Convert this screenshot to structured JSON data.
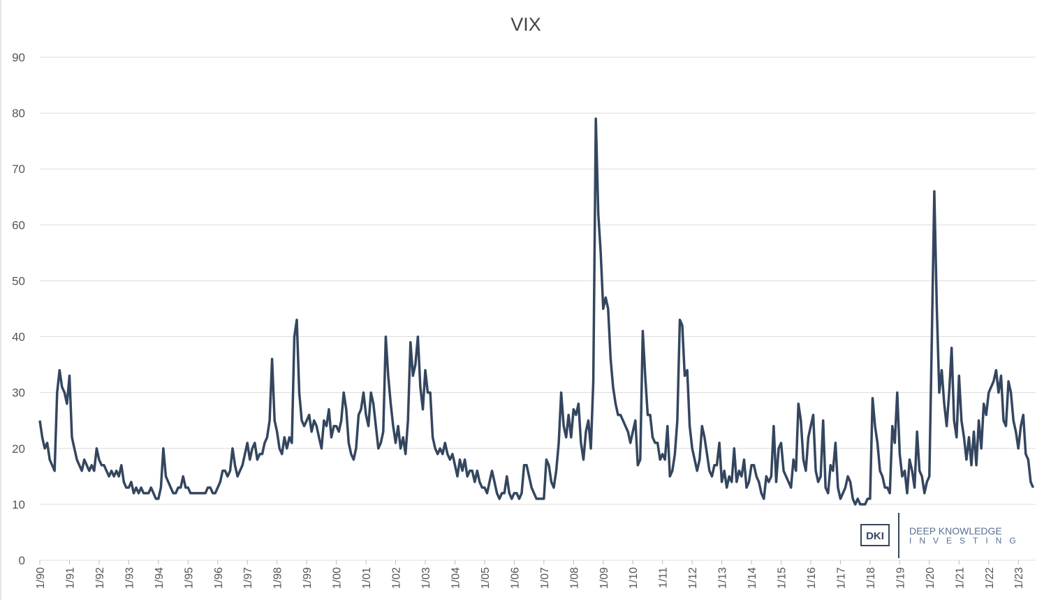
{
  "chart_data": {
    "type": "line",
    "title": "VIX",
    "x": [
      "1990-01",
      "1990-02",
      "1990-03",
      "1990-04",
      "1990-05",
      "1990-06",
      "1990-07",
      "1990-08",
      "1990-09",
      "1990-10",
      "1990-11",
      "1990-12",
      "1991-01",
      "1991-02",
      "1991-03",
      "1991-04",
      "1991-05",
      "1991-06",
      "1991-07",
      "1991-08",
      "1991-09",
      "1991-10",
      "1991-11",
      "1991-12",
      "1992-01",
      "1992-02",
      "1992-03",
      "1992-04",
      "1992-05",
      "1992-06",
      "1992-07",
      "1992-08",
      "1992-09",
      "1992-10",
      "1992-11",
      "1992-12",
      "1993-01",
      "1993-02",
      "1993-03",
      "1993-04",
      "1993-05",
      "1993-06",
      "1993-07",
      "1993-08",
      "1993-09",
      "1993-10",
      "1993-11",
      "1993-12",
      "1994-01",
      "1994-02",
      "1994-03",
      "1994-04",
      "1994-05",
      "1994-06",
      "1994-07",
      "1994-08",
      "1994-09",
      "1994-10",
      "1994-11",
      "1994-12",
      "1995-01",
      "1995-02",
      "1995-03",
      "1995-04",
      "1995-05",
      "1995-06",
      "1995-07",
      "1995-08",
      "1995-09",
      "1995-10",
      "1995-11",
      "1995-12",
      "1996-01",
      "1996-02",
      "1996-03",
      "1996-04",
      "1996-05",
      "1996-06",
      "1996-07",
      "1996-08",
      "1996-09",
      "1996-10",
      "1996-11",
      "1996-12",
      "1997-01",
      "1997-02",
      "1997-03",
      "1997-04",
      "1997-05",
      "1997-06",
      "1997-07",
      "1997-08",
      "1997-09",
      "1997-10",
      "1997-11",
      "1997-12",
      "1998-01",
      "1998-02",
      "1998-03",
      "1998-04",
      "1998-05",
      "1998-06",
      "1998-07",
      "1998-08",
      "1998-09",
      "1998-10",
      "1998-11",
      "1998-12",
      "1999-01",
      "1999-02",
      "1999-03",
      "1999-04",
      "1999-05",
      "1999-06",
      "1999-07",
      "1999-08",
      "1999-09",
      "1999-10",
      "1999-11",
      "1999-12",
      "2000-01",
      "2000-02",
      "2000-03",
      "2000-04",
      "2000-05",
      "2000-06",
      "2000-07",
      "2000-08",
      "2000-09",
      "2000-10",
      "2000-11",
      "2000-12",
      "2001-01",
      "2001-02",
      "2001-03",
      "2001-04",
      "2001-05",
      "2001-06",
      "2001-07",
      "2001-08",
      "2001-09",
      "2001-10",
      "2001-11",
      "2001-12",
      "2002-01",
      "2002-02",
      "2002-03",
      "2002-04",
      "2002-05",
      "2002-06",
      "2002-07",
      "2002-08",
      "2002-09",
      "2002-10",
      "2002-11",
      "2002-12",
      "2003-01",
      "2003-02",
      "2003-03",
      "2003-04",
      "2003-05",
      "2003-06",
      "2003-07",
      "2003-08",
      "2003-09",
      "2003-10",
      "2003-11",
      "2003-12",
      "2004-01",
      "2004-02",
      "2004-03",
      "2004-04",
      "2004-05",
      "2004-06",
      "2004-07",
      "2004-08",
      "2004-09",
      "2004-10",
      "2004-11",
      "2004-12",
      "2005-01",
      "2005-02",
      "2005-03",
      "2005-04",
      "2005-05",
      "2005-06",
      "2005-07",
      "2005-08",
      "2005-09",
      "2005-10",
      "2005-11",
      "2005-12",
      "2006-01",
      "2006-02",
      "2006-03",
      "2006-04",
      "2006-05",
      "2006-06",
      "2006-07",
      "2006-08",
      "2006-09",
      "2006-10",
      "2006-11",
      "2006-12",
      "2007-01",
      "2007-02",
      "2007-03",
      "2007-04",
      "2007-05",
      "2007-06",
      "2007-07",
      "2007-08",
      "2007-09",
      "2007-10",
      "2007-11",
      "2007-12",
      "2008-01",
      "2008-02",
      "2008-03",
      "2008-04",
      "2008-05",
      "2008-06",
      "2008-07",
      "2008-08",
      "2008-09",
      "2008-10",
      "2008-11",
      "2008-12",
      "2009-01",
      "2009-02",
      "2009-03",
      "2009-04",
      "2009-05",
      "2009-06",
      "2009-07",
      "2009-08",
      "2009-09",
      "2009-10",
      "2009-11",
      "2009-12",
      "2010-01",
      "2010-02",
      "2010-03",
      "2010-04",
      "2010-05",
      "2010-06",
      "2010-07",
      "2010-08",
      "2010-09",
      "2010-10",
      "2010-11",
      "2010-12",
      "2011-01",
      "2011-02",
      "2011-03",
      "2011-04",
      "2011-05",
      "2011-06",
      "2011-07",
      "2011-08",
      "2011-09",
      "2011-10",
      "2011-11",
      "2011-12",
      "2012-01",
      "2012-02",
      "2012-03",
      "2012-04",
      "2012-05",
      "2012-06",
      "2012-07",
      "2012-08",
      "2012-09",
      "2012-10",
      "2012-11",
      "2012-12",
      "2013-01",
      "2013-02",
      "2013-03",
      "2013-04",
      "2013-05",
      "2013-06",
      "2013-07",
      "2013-08",
      "2013-09",
      "2013-10",
      "2013-11",
      "2013-12",
      "2014-01",
      "2014-02",
      "2014-03",
      "2014-04",
      "2014-05",
      "2014-06",
      "2014-07",
      "2014-08",
      "2014-09",
      "2014-10",
      "2014-11",
      "2014-12",
      "2015-01",
      "2015-02",
      "2015-03",
      "2015-04",
      "2015-05",
      "2015-06",
      "2015-07",
      "2015-08",
      "2015-09",
      "2015-10",
      "2015-11",
      "2015-12",
      "2016-01",
      "2016-02",
      "2016-03",
      "2016-04",
      "2016-05",
      "2016-06",
      "2016-07",
      "2016-08",
      "2016-09",
      "2016-10",
      "2016-11",
      "2016-12",
      "2017-01",
      "2017-02",
      "2017-03",
      "2017-04",
      "2017-05",
      "2017-06",
      "2017-07",
      "2017-08",
      "2017-09",
      "2017-10",
      "2017-11",
      "2017-12",
      "2018-01",
      "2018-02",
      "2018-03",
      "2018-04",
      "2018-05",
      "2018-06",
      "2018-07",
      "2018-08",
      "2018-09",
      "2018-10",
      "2018-11",
      "2018-12",
      "2019-01",
      "2019-02",
      "2019-03",
      "2019-04",
      "2019-05",
      "2019-06",
      "2019-07",
      "2019-08",
      "2019-09",
      "2019-10",
      "2019-11",
      "2019-12",
      "2020-01",
      "2020-02",
      "2020-03",
      "2020-04",
      "2020-05",
      "2020-06",
      "2020-07",
      "2020-08",
      "2020-09",
      "2020-10",
      "2020-11",
      "2020-12",
      "2021-01",
      "2021-02",
      "2021-03",
      "2021-04",
      "2021-05",
      "2021-06",
      "2021-07",
      "2021-08",
      "2021-09",
      "2021-10",
      "2021-11",
      "2021-12",
      "2022-01",
      "2022-02",
      "2022-03",
      "2022-04",
      "2022-05",
      "2022-06",
      "2022-07",
      "2022-08",
      "2022-09",
      "2022-10",
      "2022-11",
      "2022-12",
      "2023-01",
      "2023-02",
      "2023-03",
      "2023-04",
      "2023-05",
      "2023-06",
      "2023-07"
    ],
    "values": [
      25,
      22,
      20,
      21,
      18,
      17,
      16,
      30,
      34,
      31,
      30,
      28,
      33,
      22,
      20,
      18,
      17,
      16,
      18,
      17,
      16,
      17,
      16,
      20,
      18,
      17,
      17,
      16,
      15,
      16,
      15,
      16,
      15,
      17,
      14,
      13,
      13,
      14,
      12,
      13,
      12,
      13,
      12,
      12,
      12,
      13,
      12,
      11,
      11,
      13,
      20,
      15,
      14,
      13,
      12,
      12,
      13,
      13,
      15,
      13,
      13,
      12,
      12,
      12,
      12,
      12,
      12,
      12,
      13,
      13,
      12,
      12,
      13,
      14,
      16,
      16,
      15,
      16,
      20,
      17,
      15,
      16,
      17,
      19,
      21,
      18,
      20,
      21,
      18,
      19,
      19,
      21,
      22,
      25,
      36,
      25,
      23,
      20,
      19,
      22,
      20,
      22,
      21,
      40,
      43,
      30,
      25,
      24,
      25,
      26,
      23,
      25,
      24,
      22,
      20,
      25,
      24,
      27,
      22,
      24,
      24,
      23,
      25,
      30,
      27,
      21,
      19,
      18,
      20,
      26,
      27,
      30,
      26,
      24,
      30,
      28,
      24,
      20,
      21,
      23,
      40,
      33,
      28,
      24,
      21,
      24,
      20,
      22,
      19,
      25,
      39,
      33,
      35,
      40,
      31,
      27,
      34,
      30,
      30,
      22,
      20,
      19,
      20,
      19,
      21,
      19,
      18,
      19,
      17,
      15,
      18,
      16,
      18,
      15,
      16,
      16,
      14,
      16,
      14,
      13,
      13,
      12,
      14,
      16,
      14,
      12,
      11,
      12,
      12,
      15,
      12,
      11,
      12,
      12,
      11,
      12,
      17,
      17,
      15,
      13,
      12,
      11,
      11,
      11,
      11,
      18,
      17,
      14,
      13,
      16,
      21,
      30,
      24,
      22,
      26,
      22,
      27,
      26,
      28,
      21,
      18,
      23,
      25,
      20,
      32,
      79,
      62,
      55,
      45,
      47,
      45,
      36,
      31,
      28,
      26,
      26,
      25,
      24,
      23,
      21,
      23,
      25,
      17,
      18,
      41,
      33,
      26,
      26,
      22,
      21,
      21,
      18,
      19,
      18,
      24,
      15,
      16,
      19,
      25,
      43,
      42,
      33,
      34,
      24,
      20,
      18,
      16,
      18,
      24,
      22,
      19,
      16,
      15,
      17,
      17,
      21,
      14,
      16,
      13,
      15,
      14,
      20,
      14,
      16,
      15,
      18,
      13,
      14,
      17,
      17,
      15,
      14,
      12,
      11,
      15,
      14,
      15,
      24,
      14,
      20,
      21,
      16,
      15,
      14,
      13,
      18,
      16,
      28,
      25,
      18,
      16,
      22,
      24,
      26,
      16,
      14,
      15,
      25,
      13,
      12,
      17,
      16,
      21,
      13,
      11,
      12,
      13,
      15,
      14,
      11,
      10,
      11,
      10,
      10,
      10,
      11,
      11,
      29,
      24,
      21,
      16,
      15,
      13,
      13,
      12,
      24,
      21,
      30,
      19,
      15,
      16,
      12,
      18,
      16,
      13,
      23,
      16,
      15,
      12,
      14,
      15,
      40,
      66,
      45,
      30,
      34,
      28,
      24,
      30,
      38,
      25,
      22,
      33,
      25,
      22,
      18,
      22,
      17,
      23,
      17,
      25,
      20,
      28,
      26,
      30,
      31,
      32,
      34,
      30,
      33,
      25,
      24,
      32,
      30,
      25,
      23,
      20,
      24,
      26,
      19,
      18,
      14,
      13
    ],
    "color": "#34465f",
    "xlim": [
      "1990-01",
      "2023-08"
    ],
    "xticks": [
      {
        "value": "1990-01",
        "label": "1/90"
      },
      {
        "value": "1991-01",
        "label": "1/91"
      },
      {
        "value": "1992-01",
        "label": "1/92"
      },
      {
        "value": "1993-01",
        "label": "1/93"
      },
      {
        "value": "1994-01",
        "label": "1/94"
      },
      {
        "value": "1995-01",
        "label": "1/95"
      },
      {
        "value": "1996-01",
        "label": "1/96"
      },
      {
        "value": "1997-01",
        "label": "1/97"
      },
      {
        "value": "1998-01",
        "label": "1/98"
      },
      {
        "value": "1999-01",
        "label": "1/99"
      },
      {
        "value": "2000-01",
        "label": "1/00"
      },
      {
        "value": "2001-01",
        "label": "1/01"
      },
      {
        "value": "2002-01",
        "label": "1/02"
      },
      {
        "value": "2003-01",
        "label": "1/03"
      },
      {
        "value": "2004-01",
        "label": "1/04"
      },
      {
        "value": "2005-01",
        "label": "1/05"
      },
      {
        "value": "2006-01",
        "label": "1/06"
      },
      {
        "value": "2007-01",
        "label": "1/07"
      },
      {
        "value": "2008-01",
        "label": "1/08"
      },
      {
        "value": "2009-01",
        "label": "1/09"
      },
      {
        "value": "2010-01",
        "label": "1/10"
      },
      {
        "value": "2011-01",
        "label": "1/11"
      },
      {
        "value": "2012-01",
        "label": "1/12"
      },
      {
        "value": "2013-01",
        "label": "1/13"
      },
      {
        "value": "2014-01",
        "label": "1/14"
      },
      {
        "value": "2015-01",
        "label": "1/15"
      },
      {
        "value": "2016-01",
        "label": "1/16"
      },
      {
        "value": "2017-01",
        "label": "1/17"
      },
      {
        "value": "2018-01",
        "label": "1/18"
      },
      {
        "value": "2019-01",
        "label": "1/19"
      },
      {
        "value": "2020-01",
        "label": "1/20"
      },
      {
        "value": "2021-01",
        "label": "1/21"
      },
      {
        "value": "2022-01",
        "label": "1/22"
      },
      {
        "value": "2023-01",
        "label": "1/23"
      }
    ],
    "ylim": [
      0,
      90
    ],
    "yticks": [
      0,
      10,
      20,
      30,
      40,
      50,
      60,
      70,
      80,
      90
    ],
    "grid": true,
    "logo": {
      "mark": "DKI",
      "line1": "DEEP KNOWLEDGE",
      "line2": "INVESTING"
    }
  }
}
